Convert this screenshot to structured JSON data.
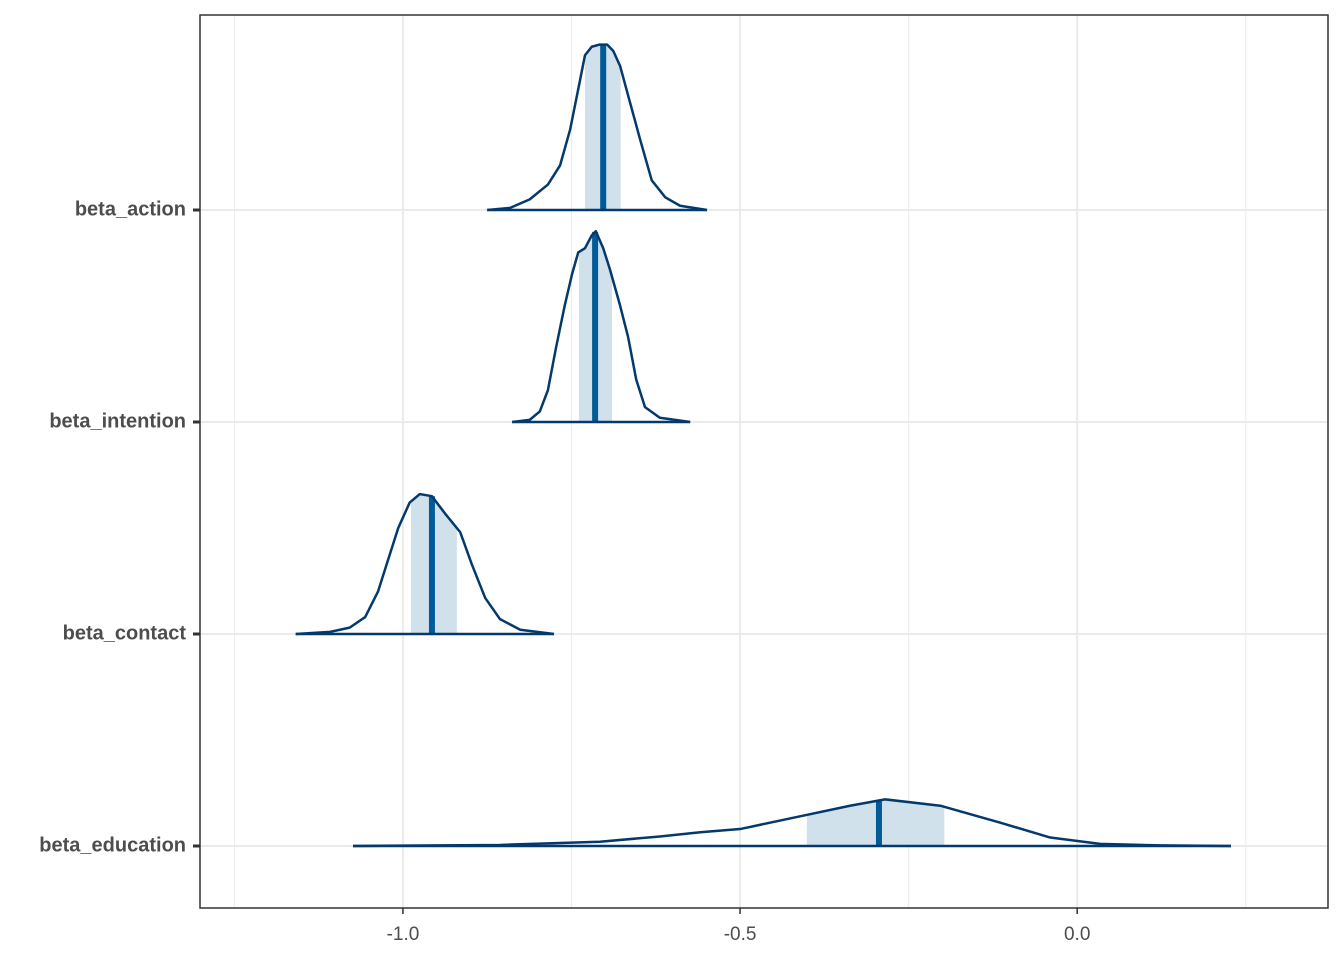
{
  "chart_data": {
    "type": "ridgeline",
    "series": [
      {
        "name": "beta_action",
        "median": -0.703,
        "interval": [
          -0.73,
          -0.677
        ],
        "x": [
          -0.875,
          -0.841,
          -0.812,
          -0.785,
          -0.767,
          -0.752,
          -0.74,
          -0.73,
          -0.72,
          -0.709,
          -0.697,
          -0.688,
          -0.678,
          -0.666,
          -0.648,
          -0.631,
          -0.611,
          -0.589,
          -0.549
        ],
        "density": [
          0,
          0.01,
          0.05,
          0.12,
          0.21,
          0.38,
          0.57,
          0.73,
          0.77,
          0.78,
          0.78,
          0.75,
          0.68,
          0.54,
          0.33,
          0.14,
          0.06,
          0.02,
          0
        ]
      },
      {
        "name": "beta_intention",
        "median": -0.715,
        "interval": [
          -0.739,
          -0.69
        ],
        "x": [
          -0.838,
          -0.812,
          -0.797,
          -0.785,
          -0.773,
          -0.76,
          -0.749,
          -0.74,
          -0.73,
          -0.72,
          -0.714,
          -0.703,
          -0.693,
          -0.678,
          -0.666,
          -0.654,
          -0.641,
          -0.619,
          -0.574
        ],
        "density": [
          0,
          0.01,
          0.05,
          0.15,
          0.35,
          0.55,
          0.7,
          0.8,
          0.82,
          0.88,
          0.9,
          0.82,
          0.72,
          0.55,
          0.4,
          0.2,
          0.07,
          0.02,
          0
        ]
      },
      {
        "name": "beta_contact",
        "median": -0.957,
        "interval": [
          -0.988,
          -0.92
        ],
        "x": [
          -1.159,
          -1.108,
          -1.079,
          -1.056,
          -1.037,
          -1.022,
          -1.007,
          -0.99,
          -0.975,
          -0.957,
          -0.938,
          -0.915,
          -0.898,
          -0.878,
          -0.856,
          -0.826,
          -0.776
        ],
        "density": [
          0,
          0.01,
          0.03,
          0.08,
          0.2,
          0.35,
          0.5,
          0.62,
          0.66,
          0.65,
          0.57,
          0.48,
          0.33,
          0.17,
          0.07,
          0.02,
          0
        ]
      },
      {
        "name": "beta_education",
        "median": -0.294,
        "interval": [
          -0.401,
          -0.197
        ],
        "x": [
          -1.074,
          -0.856,
          -0.708,
          -0.619,
          -0.559,
          -0.5,
          -0.411,
          -0.337,
          -0.285,
          -0.203,
          -0.114,
          -0.04,
          0.034,
          0.123,
          0.228
        ],
        "density": [
          0,
          0.005,
          0.02,
          0.045,
          0.065,
          0.08,
          0.14,
          0.19,
          0.22,
          0.19,
          0.11,
          0.04,
          0.01,
          0.003,
          0
        ]
      }
    ],
    "xlim": [
      -1.301,
      0.372
    ],
    "xticks": [
      {
        "value": -1.0,
        "label": "-1.0"
      },
      {
        "value": -0.5,
        "label": "-0.5"
      },
      {
        "value": 0.0,
        "label": "0.0"
      }
    ],
    "grid": true,
    "outline_color": "#03396c",
    "fill_color": "#d1e1ec",
    "median_color": "#005b96"
  }
}
